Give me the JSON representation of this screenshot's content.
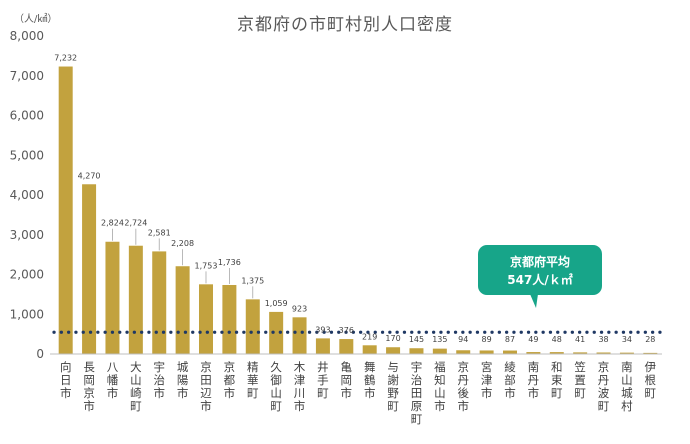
{
  "chart_data": {
    "type": "bar",
    "title": "京都府の市町村別人口密度",
    "unit_label": "（人/㎢）",
    "categories": [
      "向日市",
      "長岡京市",
      "八幡市",
      "大山崎町",
      "宇治市",
      "城陽市",
      "京田辺市",
      "京都市",
      "精華町",
      "久御山町",
      "木津川市",
      "井手町",
      "亀岡市",
      "舞鶴市",
      "与謝野町",
      "宇治田原町",
      "福知山市",
      "京丹後市",
      "宮津市",
      "綾部市",
      "南丹市",
      "和束町",
      "笠置町",
      "京丹波町",
      "南山城村",
      "伊根町"
    ],
    "values": [
      7232,
      4270,
      2824,
      2724,
      2581,
      2208,
      1753,
      1736,
      1375,
      1059,
      923,
      393,
      376,
      219,
      170,
      145,
      135,
      94,
      89,
      87,
      49,
      48,
      41,
      38,
      34,
      28
    ],
    "value_labels": [
      "7,232",
      "4,270",
      "2,824",
      "2,724",
      "2,581",
      "2,208",
      "1,753",
      "1,736",
      "1,375",
      "1,059",
      "923",
      "393",
      "376",
      "219",
      "170",
      "145",
      "135",
      "94",
      "89",
      "87",
      "49",
      "48",
      "41",
      "38",
      "34",
      "28"
    ],
    "ylim": [
      0,
      8000
    ],
    "yticks": [
      0,
      1000,
      2000,
      3000,
      4000,
      5000,
      6000,
      7000,
      8000
    ],
    "ytick_labels": [
      "0",
      "1,000",
      "2,000",
      "3,000",
      "4,000",
      "5,000",
      "6,000",
      "7,000",
      "8,000"
    ],
    "average": {
      "value": 547,
      "label_line1": "京都府平均",
      "label_line2": "547人/ｋ㎡"
    },
    "colors": {
      "bar": "#C2A23E",
      "average_line": "#1F3864",
      "callout": "#17A589",
      "axis": "#BFBFBF"
    },
    "grid": false,
    "legend": "none"
  }
}
